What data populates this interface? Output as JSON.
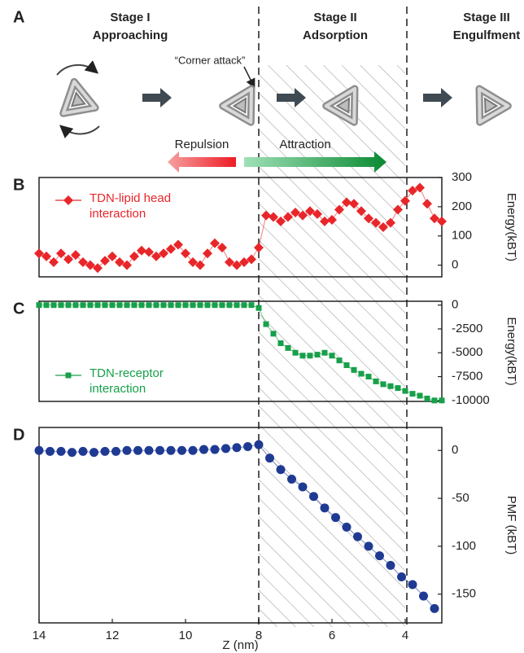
{
  "panel_a": {
    "label": "A",
    "stages": [
      {
        "name": "Stage I",
        "subtitle": "Approaching"
      },
      {
        "name": "Stage II",
        "subtitle": "Adsorption"
      },
      {
        "name": "Stage III",
        "subtitle": "Engulfment"
      }
    ],
    "annotation": "“Corner attack”",
    "repulsion": "Repulsion",
    "attraction": "Attraction"
  },
  "chart_data": [
    {
      "type": "line",
      "panel_label": "B",
      "y_label": "Energy(kBT)",
      "marker": "diamond",
      "legend": "upper left",
      "x": [
        14,
        13.8,
        13.6,
        13.4,
        13.2,
        13,
        12.8,
        12.6,
        12.4,
        12.2,
        12,
        11.8,
        11.6,
        11.4,
        11.2,
        11,
        10.8,
        10.6,
        10.4,
        10.2,
        10,
        9.8,
        9.6,
        9.4,
        9.2,
        9,
        8.8,
        8.6,
        8.4,
        8.2,
        8,
        7.8,
        7.6,
        7.4,
        7.2,
        7,
        6.8,
        6.6,
        6.4,
        6.2,
        6,
        5.8,
        5.6,
        5.4,
        5.2,
        5,
        4.8,
        4.6,
        4.4,
        4.2,
        4,
        3.8,
        3.6,
        3.4,
        3.2,
        3
      ],
      "series": [
        {
          "name": "TDN-lipid head interaction",
          "color": "#e8262a",
          "values": [
            40,
            30,
            10,
            40,
            20,
            35,
            10,
            0,
            -10,
            15,
            30,
            10,
            0,
            30,
            50,
            45,
            30,
            40,
            55,
            70,
            40,
            10,
            0,
            40,
            75,
            60,
            10,
            0,
            10,
            20,
            60,
            170,
            165,
            150,
            165,
            180,
            170,
            185,
            175,
            150,
            155,
            190,
            215,
            210,
            185,
            160,
            145,
            130,
            145,
            190,
            220,
            255,
            265,
            210,
            160,
            150
          ]
        }
      ],
      "xlim": [
        14,
        3
      ],
      "ylim": [
        -40,
        300
      ],
      "yticks": [
        0,
        100,
        200,
        300
      ]
    },
    {
      "type": "line",
      "panel_label": "C",
      "y_label": "Energy(kBT)",
      "marker": "square",
      "legend": "lower left",
      "x": [
        14,
        13.8,
        13.6,
        13.4,
        13.2,
        13,
        12.8,
        12.6,
        12.4,
        12.2,
        12,
        11.8,
        11.6,
        11.4,
        11.2,
        11,
        10.8,
        10.6,
        10.4,
        10.2,
        10,
        9.8,
        9.6,
        9.4,
        9.2,
        9,
        8.8,
        8.6,
        8.4,
        8.2,
        8,
        7.8,
        7.6,
        7.4,
        7.2,
        7,
        6.8,
        6.6,
        6.4,
        6.2,
        6,
        5.8,
        5.6,
        5.4,
        5.2,
        5,
        4.8,
        4.6,
        4.4,
        4.2,
        4,
        3.8,
        3.6,
        3.4,
        3.2,
        3
      ],
      "series": [
        {
          "name": "TDN-receptor interaction",
          "color": "#17a04a",
          "values": [
            0,
            0,
            0,
            0,
            0,
            0,
            0,
            0,
            0,
            0,
            0,
            0,
            0,
            0,
            0,
            0,
            0,
            0,
            0,
            0,
            0,
            0,
            0,
            0,
            0,
            0,
            0,
            0,
            0,
            0,
            -300,
            -2000,
            -3000,
            -4000,
            -4500,
            -5000,
            -5300,
            -5300,
            -5200,
            -5000,
            -5300,
            -5800,
            -6300,
            -6800,
            -7200,
            -7500,
            -8000,
            -8300,
            -8500,
            -8700,
            -9000,
            -9300,
            -9500,
            -9800,
            -10000,
            -10000
          ]
        }
      ],
      "xlim": [
        14,
        3
      ],
      "ylim": [
        -10100,
        400
      ],
      "yticks": [
        0,
        -2500,
        -5000,
        -7500,
        -10000
      ]
    },
    {
      "type": "line",
      "panel_label": "D",
      "y_label": "PMF (kBT)",
      "x_label": "Z (nm)",
      "marker": "circle",
      "color": "#1f3a93",
      "x": [
        14,
        13.7,
        13.4,
        13.1,
        12.8,
        12.5,
        12.2,
        11.9,
        11.6,
        11.3,
        11,
        10.7,
        10.4,
        10.1,
        9.8,
        9.5,
        9.2,
        8.9,
        8.6,
        8.3,
        8,
        7.7,
        7.4,
        7.1,
        6.8,
        6.5,
        6.2,
        5.9,
        5.6,
        5.3,
        5,
        4.7,
        4.4,
        4.1,
        3.8,
        3.5,
        3.2
      ],
      "values": [
        0,
        -1,
        -1,
        -2,
        -1,
        -2,
        -1,
        -1,
        0,
        0,
        0,
        0,
        0,
        0,
        0,
        1,
        1,
        2,
        3,
        4,
        6,
        -8,
        -20,
        -30,
        -38,
        -48,
        -60,
        -70,
        -80,
        -90,
        -100,
        -110,
        -120,
        -132,
        -140,
        -152,
        -165
      ],
      "xlim": [
        14,
        3
      ],
      "xticks": [
        14,
        12,
        10,
        8,
        6,
        4
      ],
      "ylim": [
        -180,
        24
      ],
      "yticks": [
        0,
        -50,
        -100,
        -150
      ]
    }
  ]
}
